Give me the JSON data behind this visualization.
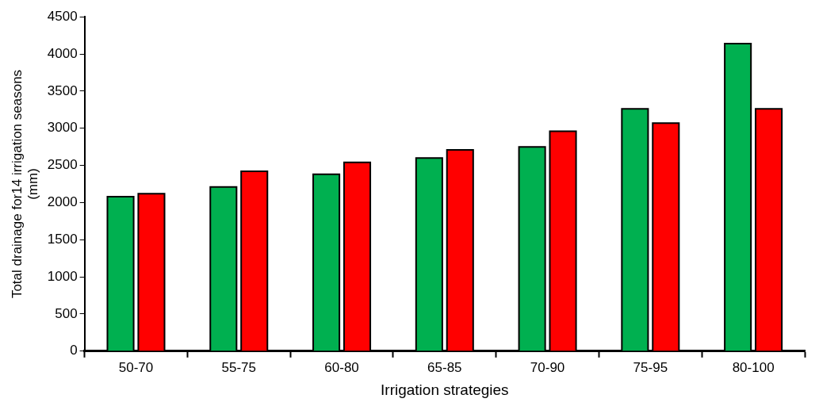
{
  "chart_data": {
    "type": "bar",
    "xlabel": "Irrigation strategies",
    "ylabel": "Total drainage for14 irrigation seasons (mm)",
    "categories": [
      "50-70",
      "55-75",
      "60-80",
      "65-85",
      "70-90",
      "75-95",
      "80-100"
    ],
    "series": [
      {
        "color": "#00b050",
        "values": [
          2080,
          2210,
          2380,
          2600,
          2750,
          3260,
          4140
        ]
      },
      {
        "color": "#ff0000",
        "values": [
          2120,
          2420,
          2540,
          2710,
          2960,
          3070,
          3260
        ]
      }
    ],
    "ylim": [
      0,
      4500
    ],
    "yticks": [
      0,
      500,
      1000,
      1500,
      2000,
      2500,
      3000,
      3500,
      4000,
      4500
    ],
    "grid": false,
    "legend": false
  }
}
